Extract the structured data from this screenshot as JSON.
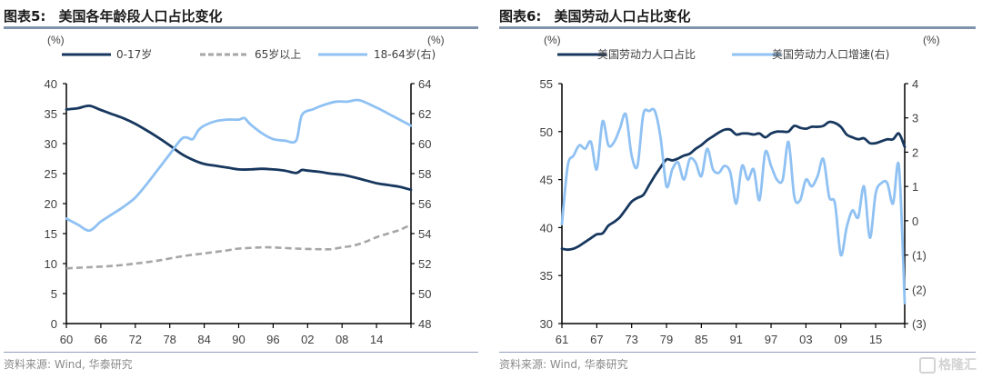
{
  "chart_data": [
    {
      "type": "line",
      "title_prefix": "图表5:",
      "title": "美国各年龄段人口占比变化",
      "left_unit": "(%)",
      "right_unit": "(%)",
      "ylim": [
        0,
        40
      ],
      "y2lim": [
        48,
        64
      ],
      "xlim": [
        1960,
        2020
      ],
      "yticks": [
        "0",
        "5",
        "10",
        "15",
        "20",
        "25",
        "30",
        "35",
        "40"
      ],
      "y2ticks": [
        "48",
        "50",
        "52",
        "54",
        "56",
        "58",
        "60",
        "62",
        "64"
      ],
      "xtick_labels": [
        "60",
        "66",
        "72",
        "78",
        "84",
        "90",
        "96",
        "02",
        "08",
        "14"
      ],
      "grid": false,
      "legend_position": "top",
      "source": "资料来源: Wind, 华泰研究",
      "series": [
        {
          "name": "0-17岁",
          "axis": "left",
          "color": "#17375e",
          "style": "solid",
          "x": [
            1960,
            1962,
            1964,
            1966,
            1968,
            1970,
            1972,
            1974,
            1976,
            1978,
            1980,
            1982,
            1984,
            1986,
            1988,
            1990,
            1992,
            1994,
            1996,
            1998,
            2000,
            2001,
            2002,
            2004,
            2006,
            2008,
            2010,
            2012,
            2014,
            2016,
            2018,
            2020
          ],
          "y": [
            35.7,
            35.9,
            36.3,
            35.6,
            34.9,
            34.2,
            33.3,
            32.2,
            31.0,
            29.7,
            28.3,
            27.3,
            26.6,
            26.3,
            26.0,
            25.7,
            25.7,
            25.8,
            25.7,
            25.5,
            25.1,
            25.6,
            25.5,
            25.3,
            25.0,
            24.8,
            24.4,
            23.9,
            23.4,
            23.1,
            22.8,
            22.3
          ]
        },
        {
          "name": "65岁以上",
          "axis": "left",
          "color": "#a6a6a6",
          "style": "dashed",
          "x": [
            1960,
            1964,
            1968,
            1972,
            1976,
            1980,
            1984,
            1988,
            1990,
            1994,
            1996,
            2000,
            2004,
            2006,
            2008,
            2010,
            2012,
            2014,
            2016,
            2018,
            2020
          ],
          "y": [
            9.2,
            9.4,
            9.6,
            10.0,
            10.5,
            11.2,
            11.7,
            12.2,
            12.5,
            12.7,
            12.7,
            12.5,
            12.4,
            12.4,
            12.7,
            13.0,
            13.6,
            14.4,
            15.0,
            15.6,
            16.5
          ]
        },
        {
          "name": "18-64岁(右)",
          "axis": "right",
          "color": "#8fc1f3",
          "style": "solid",
          "x": [
            1960,
            1962,
            1964,
            1966,
            1968,
            1970,
            1972,
            1974,
            1976,
            1978,
            1980,
            1981,
            1982,
            1983,
            1984,
            1986,
            1988,
            1990,
            1991,
            1992,
            1994,
            1996,
            1998,
            2000,
            2001,
            2003,
            2005,
            2007,
            2009,
            2011,
            2014,
            2017,
            2020
          ],
          "y": [
            55.0,
            54.6,
            54.2,
            54.8,
            55.3,
            55.8,
            56.4,
            57.3,
            58.3,
            59.3,
            60.3,
            60.4,
            60.3,
            60.9,
            61.2,
            61.5,
            61.6,
            61.6,
            61.7,
            61.3,
            60.7,
            60.3,
            60.2,
            60.2,
            61.9,
            62.3,
            62.6,
            62.8,
            62.8,
            62.9,
            62.4,
            61.8,
            61.2
          ]
        }
      ]
    },
    {
      "type": "line",
      "title_prefix": "图表6:",
      "title": "美国劳动人口占比变化",
      "left_unit": "(%)",
      "right_unit": "(%)",
      "ylim": [
        30,
        55
      ],
      "y2lim": [
        -3,
        4
      ],
      "xlim": [
        1961,
        2020
      ],
      "yticks": [
        "30",
        "35",
        "40",
        "45",
        "50",
        "55"
      ],
      "y2ticks": [
        "(3)",
        "(2)",
        "(1)",
        "0",
        "1",
        "2",
        "3",
        "4"
      ],
      "xtick_labels": [
        "61",
        "67",
        "73",
        "79",
        "85",
        "91",
        "97",
        "03",
        "09",
        "15"
      ],
      "grid": false,
      "legend_position": "top",
      "source": "资料来源: Wind, 华泰研究",
      "series": [
        {
          "name": "美国劳动力人口占比",
          "axis": "left",
          "color": "#17375e",
          "style": "solid",
          "x": [
            1961,
            1962,
            1963,
            1964,
            1965,
            1966,
            1967,
            1968,
            1969,
            1970,
            1971,
            1972,
            1973,
            1974,
            1975,
            1976,
            1977,
            1978,
            1979,
            1980,
            1981,
            1982,
            1983,
            1984,
            1985,
            1986,
            1987,
            1988,
            1989,
            1990,
            1991,
            1992,
            1993,
            1994,
            1995,
            1996,
            1997,
            1998,
            1999,
            2000,
            2001,
            2002,
            2003,
            2004,
            2005,
            2006,
            2007,
            2008,
            2009,
            2010,
            2011,
            2012,
            2013,
            2014,
            2015,
            2016,
            2017,
            2018,
            2019,
            2020
          ],
          "y": [
            37.8,
            37.7,
            37.8,
            38.1,
            38.5,
            38.9,
            39.3,
            39.4,
            40.2,
            40.6,
            41.1,
            41.9,
            42.7,
            43.1,
            43.4,
            44.4,
            45.4,
            46.3,
            47.1,
            47.0,
            47.2,
            47.5,
            47.7,
            48.2,
            48.6,
            49.1,
            49.5,
            49.9,
            50.2,
            50.2,
            49.7,
            49.8,
            49.8,
            49.7,
            49.8,
            49.4,
            49.8,
            50.0,
            50.0,
            50.0,
            50.6,
            50.4,
            50.3,
            50.5,
            50.5,
            50.6,
            51.0,
            50.9,
            50.5,
            49.7,
            49.4,
            49.2,
            49.3,
            48.8,
            48.8,
            49.0,
            49.2,
            49.2,
            49.8,
            48.4
          ]
        },
        {
          "name": "美国劳动力人口增速(右)",
          "axis": "right",
          "color": "#8fc1f3",
          "style": "solid",
          "x": [
            1961,
            1962,
            1963,
            1964,
            1965,
            1966,
            1967,
            1968,
            1969,
            1970,
            1971,
            1972,
            1973,
            1974,
            1975,
            1976,
            1977,
            1978,
            1979,
            1980,
            1981,
            1982,
            1983,
            1984,
            1985,
            1986,
            1987,
            1988,
            1989,
            1990,
            1991,
            1992,
            1993,
            1994,
            1995,
            1996,
            1997,
            1998,
            1999,
            2000,
            2001,
            2002,
            2003,
            2004,
            2005,
            2006,
            2007,
            2008,
            2009,
            2010,
            2011,
            2012,
            2013,
            2014,
            2015,
            2016,
            2017,
            2018,
            2019,
            2020
          ],
          "y": [
            -0.1,
            1.6,
            1.9,
            2.2,
            2.1,
            2.3,
            1.5,
            2.9,
            2.2,
            2.3,
            2.7,
            3.1,
            1.9,
            1.6,
            3.1,
            3.2,
            3.2,
            2.4,
            1.0,
            1.5,
            1.7,
            1.2,
            1.8,
            1.7,
            1.3,
            2.1,
            1.5,
            1.4,
            1.6,
            1.4,
            0.5,
            1.6,
            1.2,
            1.5,
            0.6,
            2.0,
            1.6,
            1.2,
            1.2,
            2.3,
            0.7,
            0.6,
            1.2,
            1.0,
            1.3,
            1.8,
            0.7,
            0.5,
            -1.0,
            -0.2,
            0.3,
            0.1,
            1.0,
            -0.5,
            0.8,
            1.1,
            1.1,
            0.5,
            1.6,
            -2.4
          ]
        }
      ]
    }
  ],
  "watermark": {
    "text": "格隆汇"
  }
}
